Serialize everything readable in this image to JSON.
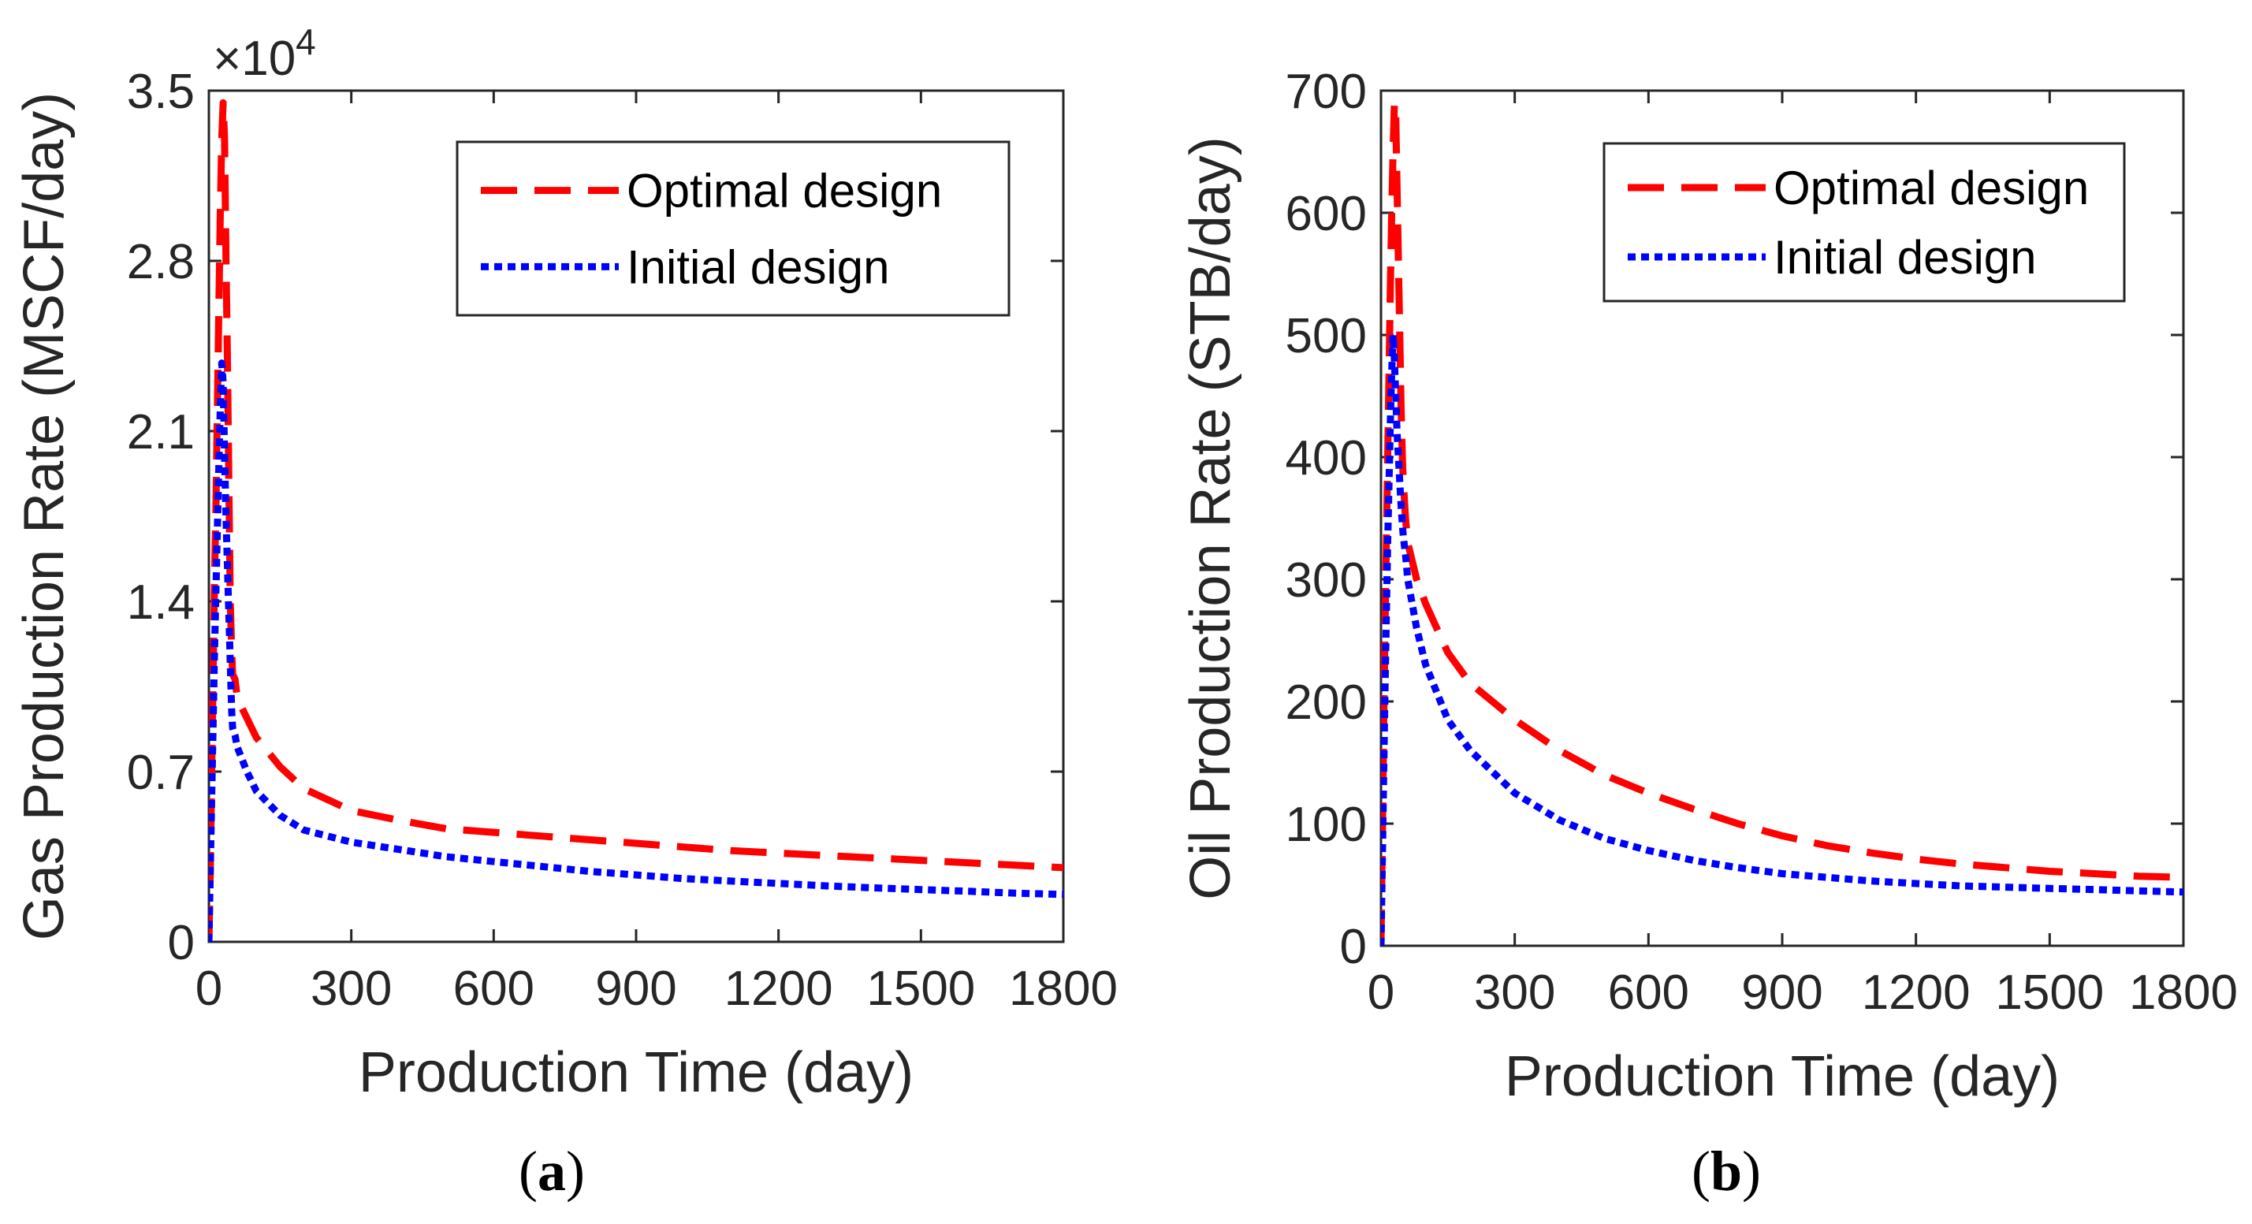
{
  "colors": {
    "optimal": "#ff0000",
    "initial": "#0000ff",
    "axis": "#262626",
    "legend_border": "#262626"
  },
  "chart_data": [
    {
      "type": "line",
      "panel_label": "a",
      "xlabel": "Production Time (day)",
      "ylabel": "Gas Production Rate (MSCF/day)",
      "y_multiplier": "×10",
      "y_multiplier_exponent": "4",
      "xlim": [
        0,
        1800
      ],
      "ylim": [
        0,
        3.5
      ],
      "xticks": [
        0,
        300,
        600,
        900,
        1200,
        1500,
        1800
      ],
      "xtick_labels": [
        "0",
        "300",
        "600",
        "900",
        "1200",
        "1500",
        "1800"
      ],
      "yticks": [
        0,
        0.7,
        1.4,
        2.1,
        2.8,
        3.5
      ],
      "ytick_labels": [
        "0",
        "0.7",
        "1.4",
        "2.1",
        "2.8",
        "3.5"
      ],
      "legend": {
        "position": "top-right",
        "entries": [
          "Optimal design",
          "Initial design"
        ]
      },
      "series": [
        {
          "name": "Optimal design",
          "style": "dashed",
          "x": [
            0,
            3,
            6,
            9,
            12,
            15,
            18,
            21,
            24,
            27,
            30,
            33,
            36,
            39,
            42,
            45,
            48,
            50,
            55,
            60,
            80,
            100,
            150,
            200,
            300,
            400,
            500,
            600,
            700,
            800,
            900,
            1000,
            1100,
            1200,
            1300,
            1400,
            1500,
            1600,
            1700,
            1800
          ],
          "y": [
            0,
            0.3,
            0.7,
            1.1,
            1.5,
            1.8,
            2.2,
            2.6,
            3.0,
            3.3,
            3.45,
            3.3,
            2.8,
            2.4,
            1.9,
            1.4,
            1.2,
            1.1,
            1.08,
            1.0,
            0.92,
            0.84,
            0.72,
            0.63,
            0.54,
            0.5,
            0.465,
            0.45,
            0.435,
            0.42,
            0.405,
            0.39,
            0.375,
            0.365,
            0.355,
            0.345,
            0.335,
            0.325,
            0.315,
            0.305
          ]
        },
        {
          "name": "Initial design",
          "style": "dotted",
          "x": [
            0,
            3,
            6,
            9,
            12,
            15,
            18,
            21,
            24,
            27,
            30,
            33,
            36,
            39,
            42,
            45,
            48,
            50,
            55,
            60,
            80,
            100,
            150,
            200,
            300,
            400,
            500,
            600,
            700,
            800,
            900,
            1000,
            1100,
            1200,
            1300,
            1400,
            1500,
            1600,
            1700,
            1800
          ],
          "y": [
            0,
            0.3,
            0.6,
            0.9,
            1.2,
            1.45,
            1.7,
            1.95,
            2.2,
            2.38,
            2.3,
            2.0,
            1.75,
            1.55,
            1.35,
            1.15,
            0.95,
            0.88,
            0.85,
            0.8,
            0.7,
            0.62,
            0.52,
            0.46,
            0.41,
            0.38,
            0.35,
            0.33,
            0.31,
            0.29,
            0.275,
            0.26,
            0.25,
            0.24,
            0.23,
            0.222,
            0.215,
            0.208,
            0.2,
            0.195
          ]
        }
      ]
    },
    {
      "type": "line",
      "panel_label": "b",
      "xlabel": "Production Time (day)",
      "ylabel": "Oil Production Rate (STB/day)",
      "xlim": [
        0,
        1800
      ],
      "ylim": [
        0,
        700
      ],
      "xticks": [
        0,
        300,
        600,
        900,
        1200,
        1500,
        1800
      ],
      "xtick_labels": [
        "0",
        "300",
        "600",
        "900",
        "1200",
        "1500",
        "1800"
      ],
      "yticks": [
        0,
        100,
        200,
        300,
        400,
        500,
        600,
        700
      ],
      "ytick_labels": [
        "0",
        "100",
        "200",
        "300",
        "400",
        "500",
        "600",
        "700"
      ],
      "legend": {
        "position": "top-right",
        "entries": [
          "Optimal design",
          "Initial design"
        ]
      },
      "series": [
        {
          "name": "Optimal design",
          "style": "dashed",
          "x": [
            0,
            3,
            6,
            9,
            12,
            15,
            18,
            21,
            24,
            27,
            30,
            33,
            36,
            39,
            42,
            45,
            48,
            50,
            55,
            60,
            80,
            100,
            150,
            200,
            300,
            400,
            500,
            600,
            700,
            800,
            900,
            1000,
            1100,
            1200,
            1300,
            1400,
            1500,
            1600,
            1700,
            1800
          ],
          "y": [
            0,
            90,
            180,
            260,
            330,
            400,
            470,
            540,
            600,
            650,
            690,
            680,
            620,
            560,
            500,
            440,
            400,
            380,
            350,
            330,
            300,
            280,
            240,
            215,
            185,
            160,
            140,
            125,
            112,
            100,
            90,
            82,
            76,
            71,
            67,
            64,
            61,
            59,
            57,
            56
          ]
        },
        {
          "name": "Initial design",
          "style": "dotted",
          "x": [
            0,
            3,
            6,
            9,
            12,
            15,
            18,
            21,
            24,
            27,
            30,
            33,
            36,
            39,
            42,
            45,
            48,
            50,
            55,
            60,
            80,
            100,
            150,
            200,
            300,
            400,
            500,
            600,
            700,
            800,
            900,
            1000,
            1100,
            1200,
            1300,
            1400,
            1500,
            1600,
            1700,
            1800
          ],
          "y": [
            0,
            70,
            140,
            210,
            270,
            330,
            380,
            430,
            470,
            500,
            480,
            450,
            420,
            400,
            380,
            360,
            345,
            335,
            320,
            300,
            260,
            230,
            185,
            160,
            125,
            103,
            88,
            78,
            70,
            64,
            59,
            56,
            53,
            51,
            49,
            48,
            47,
            46,
            45,
            44
          ]
        }
      ]
    }
  ]
}
